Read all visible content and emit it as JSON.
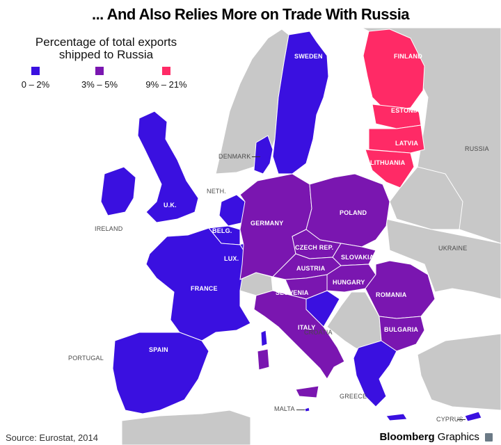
{
  "title": "... And Also Relies More on Trade With Russia",
  "legend": {
    "title": "Percentage of total exports shipped to Russia",
    "items": [
      {
        "label": "0 – 2%",
        "color": "#3a10e0"
      },
      {
        "label": "3% – 5%",
        "color": "#7a16b0"
      },
      {
        "label": "9% – 21%",
        "color": "#ff2a66"
      }
    ]
  },
  "colors": {
    "non_eu": "#c8c8c8",
    "sea": "#ffffff",
    "border": "#ffffff"
  },
  "countries": {
    "sweden": {
      "label": "SWEDEN",
      "category": "0 – 2%"
    },
    "finland": {
      "label": "FINLAND",
      "category": "9% – 21%"
    },
    "estonia": {
      "label": "ESTONIA",
      "category": "9% – 21%"
    },
    "latvia": {
      "label": "LATVIA",
      "category": "9% – 21%"
    },
    "lithuania": {
      "label": "LITHUANIA",
      "category": "9% – 21%"
    },
    "denmark": {
      "label": "DENMARK",
      "category": "0 – 2%"
    },
    "netherlands": {
      "label": "NETH.",
      "category": "0 – 2%"
    },
    "uk": {
      "label": "U.K.",
      "category": "0 – 2%"
    },
    "ireland": {
      "label": "IRELAND",
      "category": "0 – 2%"
    },
    "belgium": {
      "label": "BELG.",
      "category": "0 – 2%"
    },
    "luxembourg": {
      "label": "LUX.",
      "category": "0 – 2%"
    },
    "france": {
      "label": "FRANCE",
      "category": "0 – 2%"
    },
    "spain": {
      "label": "SPAIN",
      "category": "0 – 2%"
    },
    "portugal": {
      "label": "PORTUGAL",
      "category": "0 – 2%"
    },
    "germany": {
      "label": "GERMANY",
      "category": "3% – 5%"
    },
    "poland": {
      "label": "POLAND",
      "category": "3% – 5%"
    },
    "czech": {
      "label": "CZECH REP.",
      "category": "3% – 5%"
    },
    "slovakia": {
      "label": "SLOVAKIA",
      "category": "3% – 5%"
    },
    "austria": {
      "label": "AUSTRIA",
      "category": "3% – 5%"
    },
    "hungary": {
      "label": "HUNGARY",
      "category": "3% – 5%"
    },
    "slovenia": {
      "label": "SLOVENIA",
      "category": "3% – 5%"
    },
    "romania": {
      "label": "ROMANIA",
      "category": "3% – 5%"
    },
    "bulgaria": {
      "label": "BULGARIA",
      "category": "3% – 5%"
    },
    "italy": {
      "label": "ITALY",
      "category": "3% – 5%"
    },
    "croatia": {
      "label": "CROATIA",
      "category": "0 – 2%"
    },
    "greece": {
      "label": "GREECE",
      "category": "0 – 2%"
    },
    "malta": {
      "label": "MALTA",
      "category": "0 – 2%"
    },
    "cyprus": {
      "label": "CYPRUS",
      "category": "0 – 2%"
    },
    "russia": {
      "label": "RUSSIA"
    },
    "ukraine": {
      "label": "UKRAINE"
    }
  },
  "source": "Source: Eurostat, 2014",
  "brand": {
    "name": "Bloomberg",
    "suffix": "Graphics"
  }
}
